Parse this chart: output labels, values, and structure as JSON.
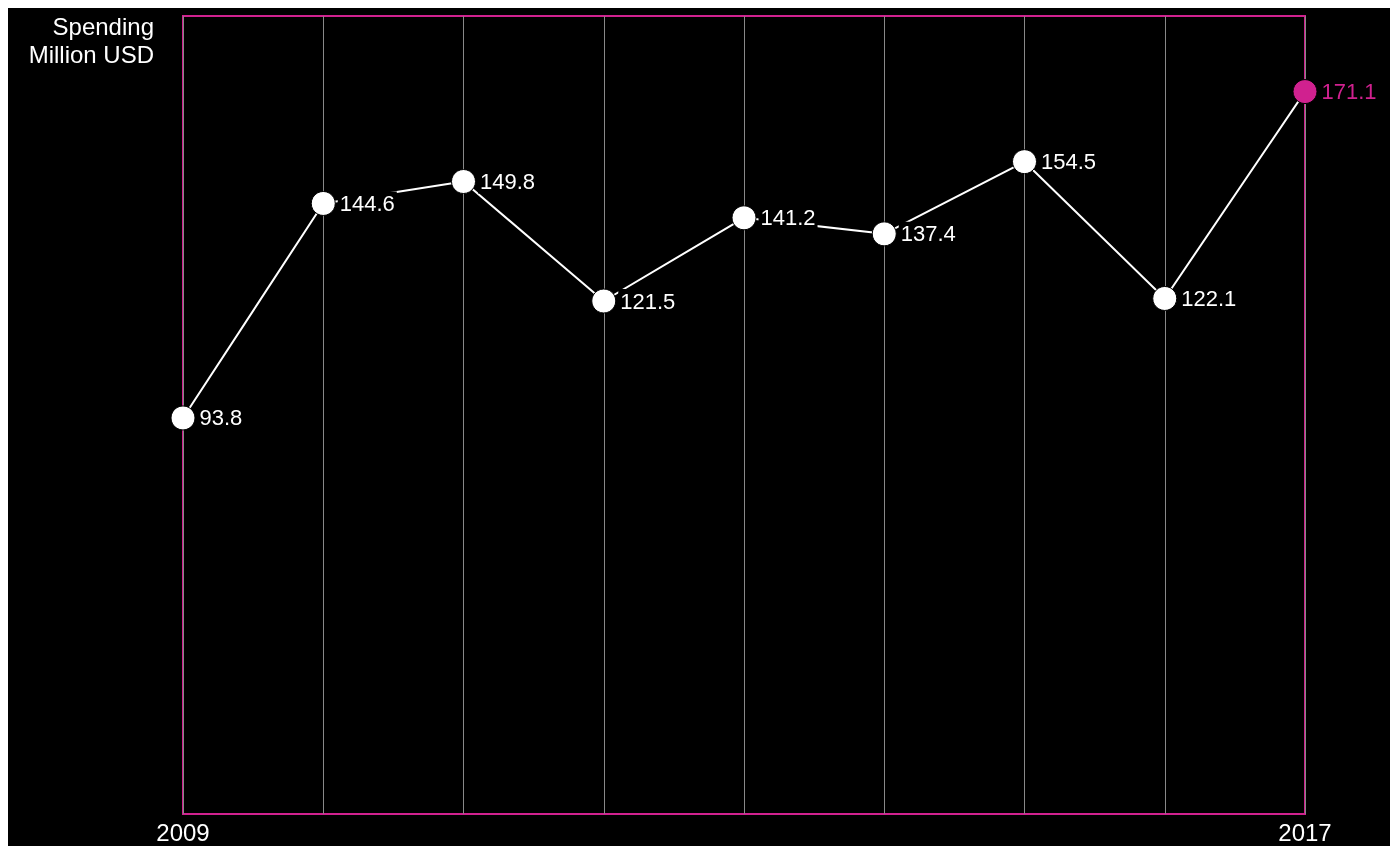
{
  "chart_data": {
    "type": "line",
    "ylabel": "Spending\nMillion USD",
    "x": [
      2009,
      2010,
      2011,
      2012,
      2013,
      2014,
      2015,
      2016,
      2017
    ],
    "series": [
      {
        "color": "#ffffff",
        "colors": [
          "#ffffff",
          "#ffffff",
          "#ffffff",
          "#ffffff",
          "#ffffff",
          "#ffffff",
          "#ffffff",
          "#ffffff",
          "#d0218f"
        ],
        "values": [
          93.8,
          144.6,
          149.8,
          121.5,
          141.2,
          137.4,
          154.5,
          122.1,
          171.1
        ]
      }
    ],
    "xlim": [
      2009,
      2017
    ],
    "xticks": [
      2009,
      {
        "value": 2010,
        "label": null
      },
      {
        "value": 2011,
        "label": null
      },
      {
        "value": 2012,
        "label": null
      },
      {
        "value": 2013,
        "label": null
      },
      {
        "value": 2014,
        "label": null
      },
      {
        "value": 2015,
        "label": null
      },
      {
        "value": 2016,
        "label": null
      },
      2017
    ],
    "ylim": [
      0,
      189
    ],
    "tick_labels": "x",
    "grid": "x",
    "data_labels": true,
    "marker": "circle",
    "line_style": "solid"
  }
}
